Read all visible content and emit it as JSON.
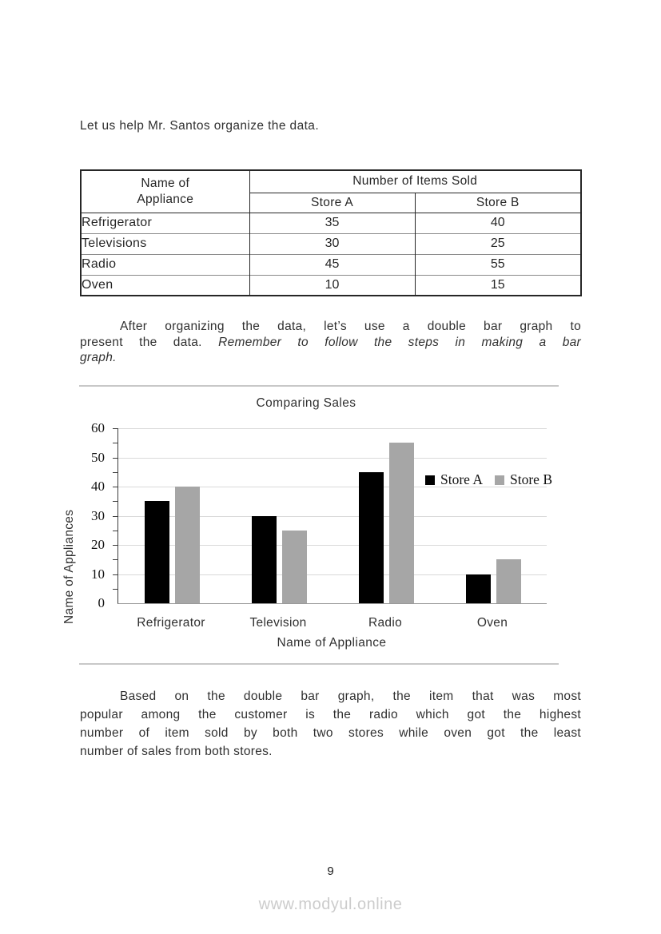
{
  "intro_text": "Let us help Mr. Santos organize the data.",
  "table": {
    "appliance_header": "Name of Appliance",
    "items_sold_header": "Number of Items Sold",
    "store_a_header": "Store A",
    "store_b_header": "Store B",
    "rows": [
      {
        "name": "Refrigerator",
        "store_a": "35",
        "store_b": "40"
      },
      {
        "name": "Televisions",
        "store_a": "30",
        "store_b": "25"
      },
      {
        "name": "Radio",
        "store_a": "45",
        "store_b": "55"
      },
      {
        "name": "Oven",
        "store_a": "10",
        "store_b": "15"
      }
    ]
  },
  "para1": {
    "line1": "After organizing the data, let’s use a double bar graph to",
    "line2_normal": "present the data. ",
    "line2_italic": "Remember to follow the steps in making a bar",
    "line3_italic": "graph."
  },
  "chart_data": {
    "type": "bar",
    "title": "Comparing Sales",
    "categories": [
      "Refrigerator",
      "Television",
      "Radio",
      "Oven"
    ],
    "series": [
      {
        "name": "Store A",
        "values": [
          35,
          30,
          45,
          10
        ],
        "color": "#000000"
      },
      {
        "name": "Store B",
        "values": [
          40,
          25,
          55,
          15
        ],
        "color": "#a6a6a6"
      }
    ],
    "xlabel": "Name of Appliance",
    "ylabel": "Name of Appliances",
    "ylim": [
      0,
      60
    ],
    "ytick_step": 10,
    "minor_tick_step": 5,
    "grid": true,
    "gridline_color": "#d9d9d9",
    "legend_position": "right-inside"
  },
  "para2": {
    "lines": [
      "Based on the double bar graph, the item that was most",
      "popular among the customer is the radio which got the highest",
      "number of item sold by both two stores while oven got the least",
      "number of sales from both stores."
    ]
  },
  "page": {
    "number": "9",
    "footer": "www.modyul.online"
  },
  "colors": {
    "body_text": "#303030",
    "divider": "#c8c8c8",
    "footer_text": "#cccccc"
  }
}
